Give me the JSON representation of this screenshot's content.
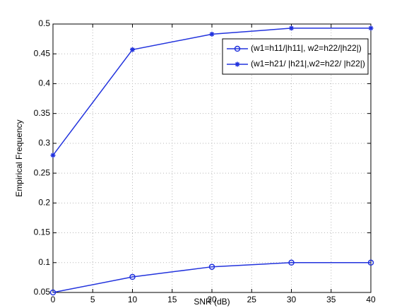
{
  "chart_data": {
    "type": "line",
    "xlabel": "SNR (dB)",
    "ylabel": "Empirical Frequency",
    "x": [
      0,
      10,
      20,
      30,
      40
    ],
    "series": [
      {
        "name": "(w1=h11/|h11|, w2=h22/|h22|)",
        "color": "#2233dd",
        "marker": "circle",
        "values": [
          0.05,
          0.076,
          0.093,
          0.1,
          0.1
        ]
      },
      {
        "name": "(w1=h21/ |h21|,w2=h22/ |h22|)",
        "color": "#2233dd",
        "marker": "star",
        "values": [
          0.28,
          0.457,
          0.483,
          0.493,
          0.493
        ]
      }
    ],
    "xlim": [
      0,
      40
    ],
    "xticks": [
      0,
      5,
      10,
      15,
      20,
      25,
      30,
      35,
      40
    ],
    "ylim": [
      0.05,
      0.5
    ],
    "yticks": [
      0.05,
      0.1,
      0.15,
      0.2,
      0.25,
      0.3,
      0.35,
      0.4,
      0.45,
      0.5
    ],
    "grid": true,
    "legend": "upper right"
  }
}
